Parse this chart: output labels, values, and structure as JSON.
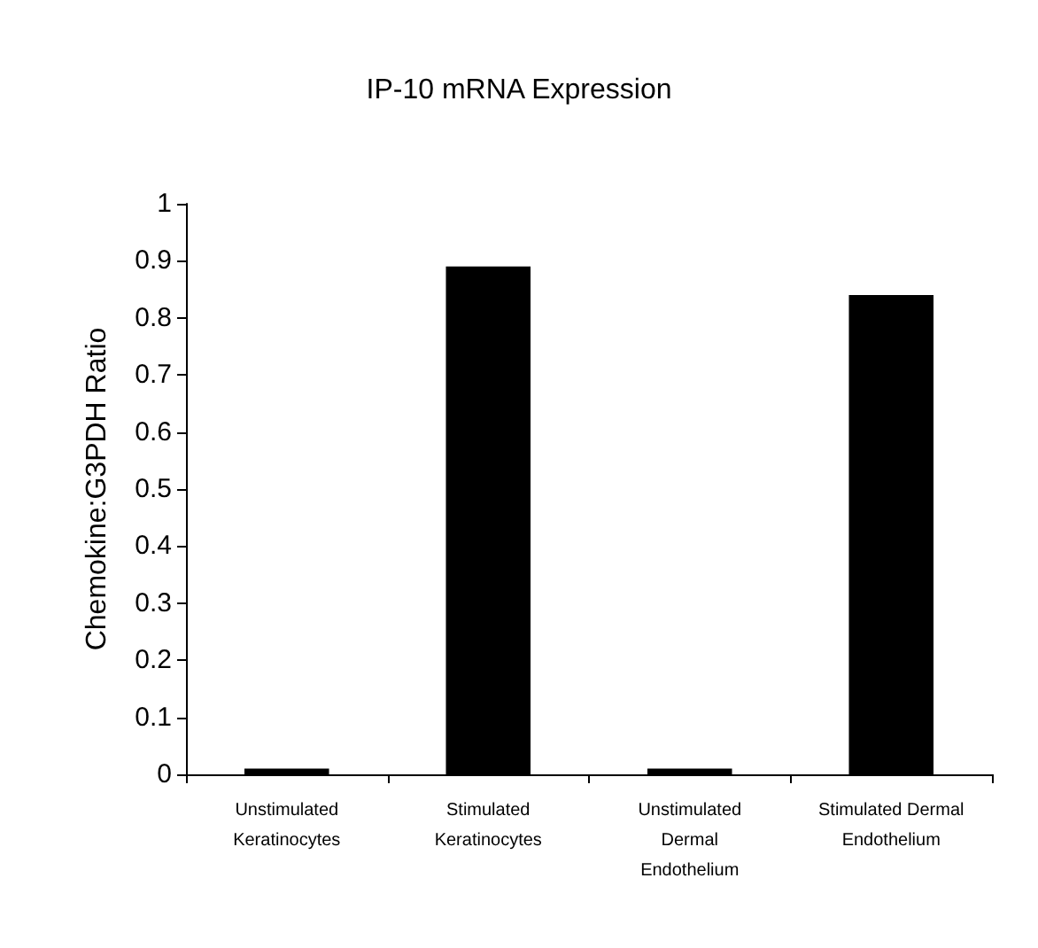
{
  "chart_data": {
    "type": "bar",
    "title": "IP-10 mRNA Expression",
    "ylabel": "Chemokine:G3PDH Ratio",
    "categories": [
      "Unstimulated\nKeratinocytes",
      "Stimulated\nKeratinocytes",
      "Unstimulated\nDermal\nEndothelium",
      "Stimulated Dermal\nEndothelium"
    ],
    "values": [
      0.01,
      0.89,
      0.01,
      0.84
    ],
    "color": "#000000",
    "ylim": [
      0,
      1
    ],
    "yticks": [
      0,
      0.1,
      0.2,
      0.3,
      0.4,
      0.5,
      0.6,
      0.7,
      0.8,
      0.9,
      1
    ],
    "grid": false
  }
}
